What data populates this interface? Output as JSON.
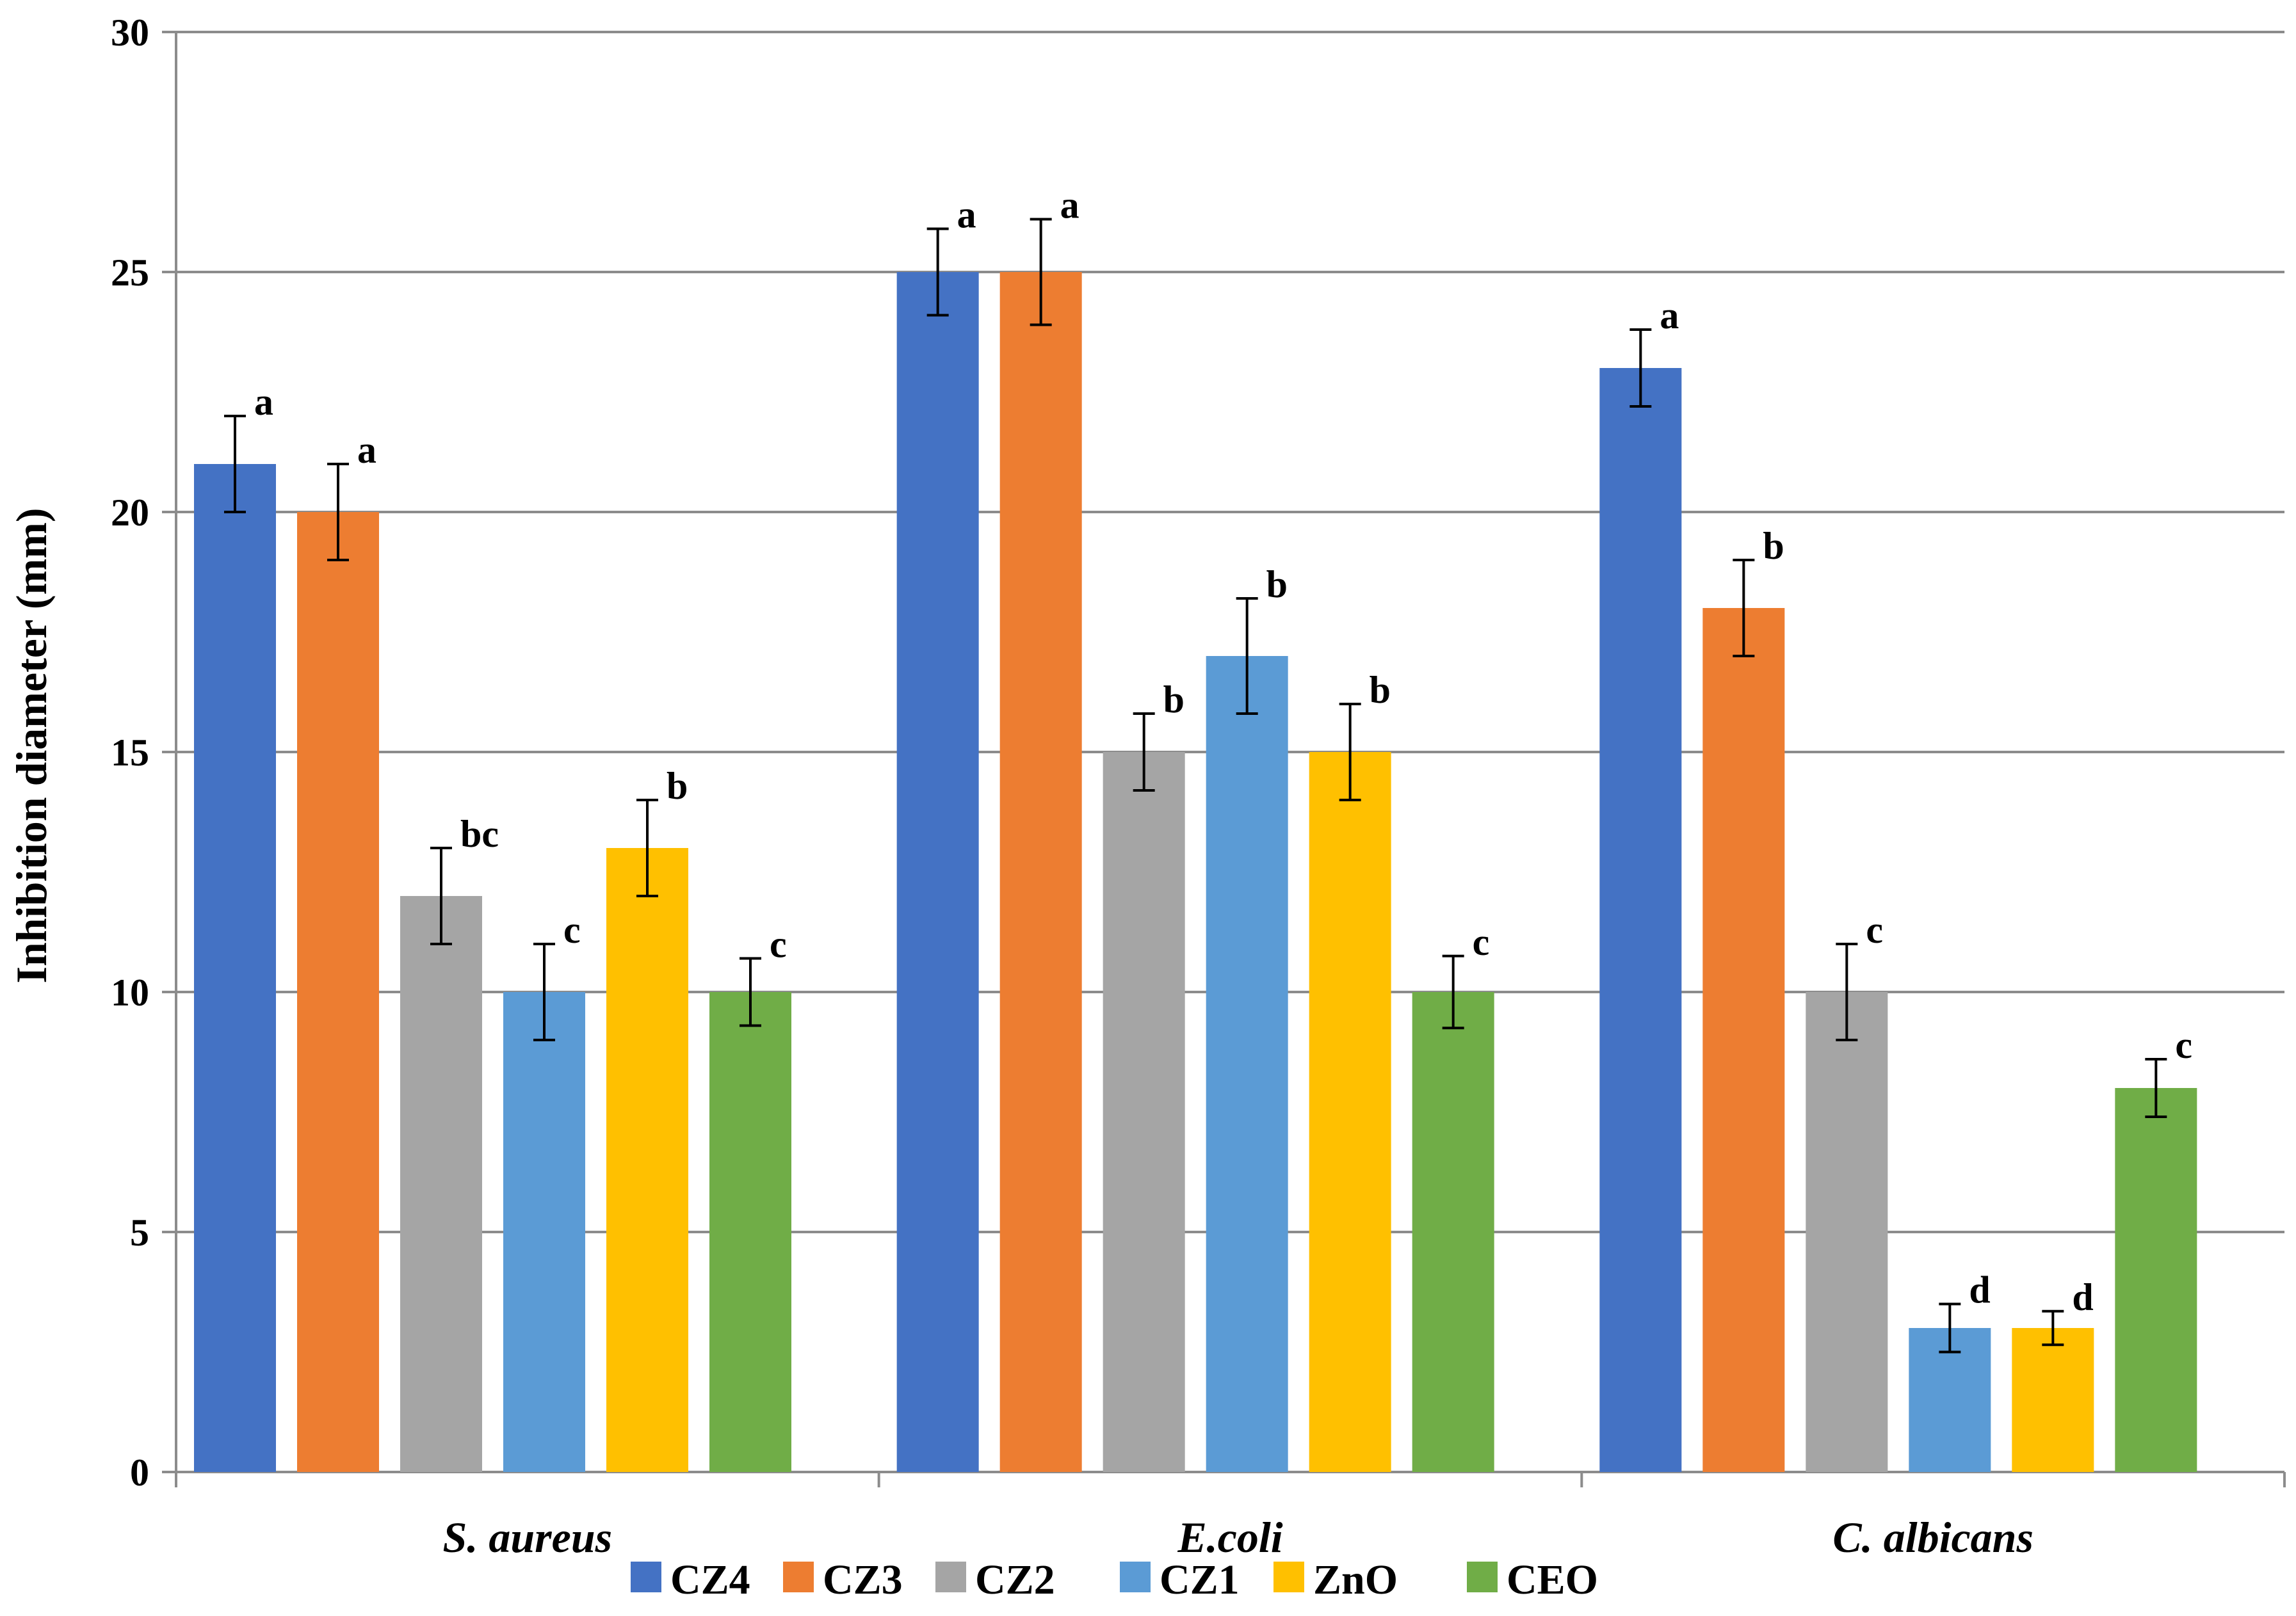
{
  "chart_data": {
    "type": "bar",
    "title": "",
    "xlabel": "",
    "ylabel": "Inhibition diameter (mm)",
    "ylim": [
      0,
      30
    ],
    "yticks": [
      0,
      5,
      10,
      15,
      20,
      25,
      30
    ],
    "grid": true,
    "legend_position": "bottom",
    "categories": [
      "S. aureus",
      "E.coli",
      "C. albicans"
    ],
    "series": [
      {
        "name": "CZ4",
        "color": "#4472C4",
        "values": [
          21,
          25,
          23
        ],
        "errors": [
          1.0,
          0.9,
          0.8
        ],
        "letters": [
          "a",
          "a",
          "a"
        ]
      },
      {
        "name": "CZ3",
        "color": "#ED7D31",
        "values": [
          20,
          25,
          18
        ],
        "errors": [
          1.0,
          1.1,
          1.0
        ],
        "letters": [
          "a",
          "a",
          "b"
        ]
      },
      {
        "name": "CZ2",
        "color": "#A5A5A5",
        "values": [
          12,
          15,
          10
        ],
        "errors": [
          1.0,
          0.8,
          1.0
        ],
        "letters": [
          "bc",
          "b",
          "c"
        ]
      },
      {
        "name": "CZ1",
        "color": "#5B9BD5",
        "values": [
          10,
          17,
          3
        ],
        "errors": [
          1.0,
          1.2,
          0.5
        ],
        "letters": [
          "c",
          "b",
          "d"
        ]
      },
      {
        "name": "ZnO",
        "color": "#FFC000",
        "values": [
          13,
          15,
          3
        ],
        "errors": [
          1.0,
          1.0,
          0.35
        ],
        "letters": [
          "b",
          "b",
          "d"
        ]
      },
      {
        "name": "CEO",
        "color": "#70AD47",
        "values": [
          10,
          10,
          8
        ],
        "errors": [
          0.7,
          0.75,
          0.6
        ],
        "letters": [
          "c",
          "c",
          "c"
        ]
      }
    ]
  }
}
